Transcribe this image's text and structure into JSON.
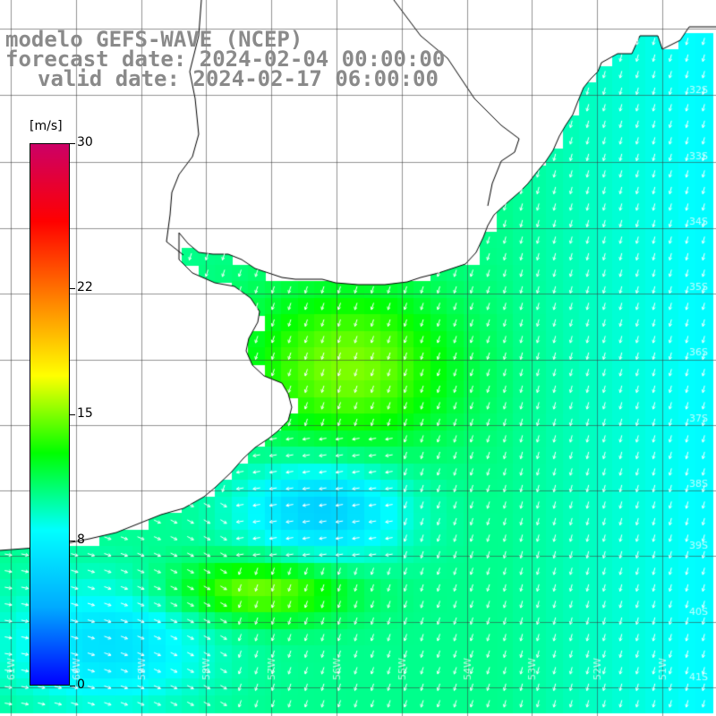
{
  "title": {
    "line1": "modelo GEFS-WAVE (NCEP)",
    "line2": "forecast date: 2024-02-04 00:00:00",
    "line3": "valid date: 2024-02-17 06:00:00"
  },
  "legend": {
    "unit": "[m/s]",
    "ticks": [
      "30",
      "22",
      "15",
      "8",
      "0"
    ],
    "tick_values": [
      30,
      22,
      15,
      8,
      0
    ],
    "range": [
      0,
      30
    ],
    "colormap": [
      "#0000ff",
      "#00aaff",
      "#00ffff",
      "#00ff00",
      "#ffff00",
      "#ff8000",
      "#ff0000",
      "#cc0066"
    ]
  },
  "map": {
    "lat_labels": [
      "32S",
      "33S",
      "34S",
      "35S",
      "36S",
      "37S",
      "38S",
      "39S",
      "40S",
      "41S"
    ],
    "lon_labels": [
      "61W",
      "60W",
      "59W",
      "58W",
      "57W",
      "56W",
      "55W",
      "54W",
      "53W",
      "52W",
      "51W"
    ],
    "field": "wind speed and direction (arrows)"
  }
}
